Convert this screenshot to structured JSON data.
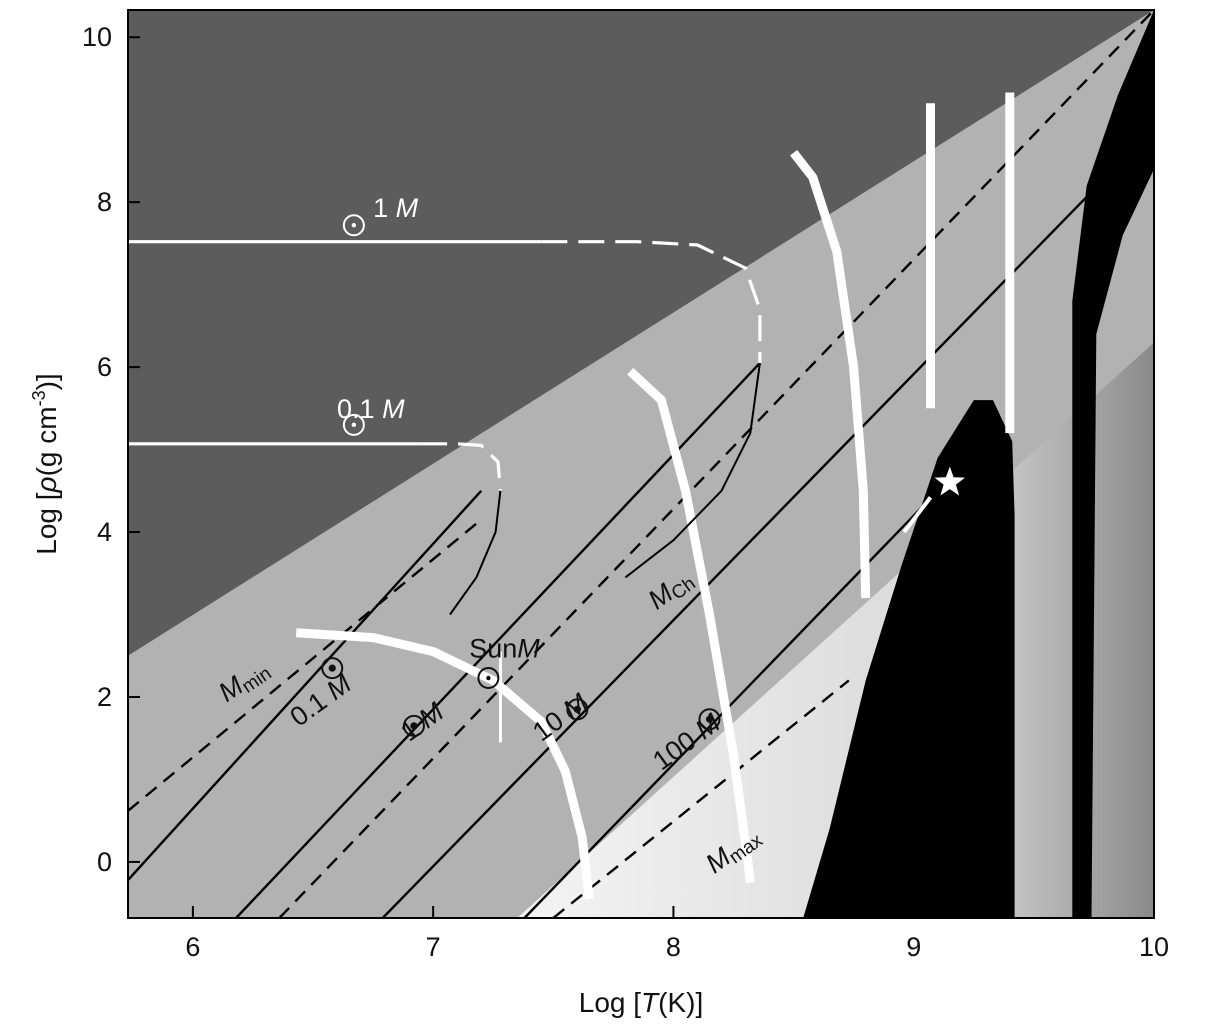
{
  "chart_data": {
    "type": "line",
    "xlabel_parts": [
      "Log [",
      "T",
      "(K)]"
    ],
    "ylabel_parts": [
      "Log [",
      "ρ",
      "(g cm",
      "-3",
      ")]"
    ],
    "xlim": [
      5.73,
      10
    ],
    "ylim": [
      -0.68,
      10.33
    ],
    "xticks": [
      6,
      7,
      8,
      9,
      10
    ],
    "yticks": [
      0,
      2,
      4,
      6,
      8,
      10
    ],
    "regions": [
      {
        "fill": "#5c5c5c",
        "points": [
          [
            5.73,
            10.33
          ],
          [
            10,
            10.33
          ],
          [
            5.73,
            2.5
          ]
        ]
      },
      {
        "fill": "#b2b2b2",
        "points": [
          [
            5.73,
            2.5
          ],
          [
            10,
            10.33
          ],
          [
            10,
            -0.68
          ],
          [
            5.73,
            -0.68
          ]
        ]
      },
      {
        "fill": "#ebebeb",
        "points": [
          [
            7.35,
            -0.68
          ],
          [
            10,
            6.3
          ],
          [
            10,
            -0.68
          ]
        ]
      },
      {
        "fill": "#000000",
        "points": [
          [
            8.54,
            -0.68
          ],
          [
            8.65,
            0.4
          ],
          [
            8.8,
            2.2
          ],
          [
            8.95,
            3.6
          ],
          [
            9.1,
            4.9
          ],
          [
            9.25,
            5.6
          ],
          [
            9.33,
            5.6
          ],
          [
            9.41,
            5.1
          ],
          [
            9.42,
            4.2
          ],
          [
            9.42,
            -0.68
          ]
        ]
      },
      {
        "fill": "#000000",
        "points": [
          [
            9.66,
            -0.68
          ],
          [
            9.66,
            6.8
          ],
          [
            9.72,
            8.2
          ],
          [
            9.85,
            9.3
          ],
          [
            10,
            10.33
          ],
          [
            10,
            8.4
          ],
          [
            9.87,
            7.6
          ],
          [
            9.76,
            6.4
          ],
          [
            9.74,
            -0.68
          ]
        ]
      }
    ],
    "mass_lines": [
      {
        "style": "dashed",
        "from": [
          5.73,
          0.62
        ],
        "to": [
          7.2,
          4.15
        ]
      },
      {
        "style": "solid",
        "from": [
          5.73,
          -0.22
        ],
        "to": [
          7.2,
          4.5
        ]
      },
      {
        "style": "solid",
        "from": [
          6.18,
          -0.68
        ],
        "to": [
          8.36,
          6.05
        ]
      },
      {
        "style": "dashed",
        "from": [
          6.36,
          -0.68
        ],
        "to": [
          10,
          10.33
        ]
      },
      {
        "style": "solid",
        "from": [
          6.79,
          -0.68
        ],
        "to": [
          10,
          8.9
        ]
      },
      {
        "style": "solid",
        "from": [
          7.38,
          -0.68
        ],
        "to": [
          9.1,
          4.5
        ]
      },
      {
        "style": "dashed",
        "from": [
          7.5,
          -0.68
        ],
        "to": [
          8.73,
          2.2
        ]
      }
    ],
    "tracks": [
      {
        "name": "1 M⊙",
        "solid": [
          [
            5.73,
            7.52
          ],
          [
            7.45,
            7.52
          ]
        ],
        "dashed": [
          [
            7.45,
            7.52
          ],
          [
            7.85,
            7.52
          ],
          [
            8.1,
            7.48
          ],
          [
            8.3,
            7.2
          ],
          [
            8.36,
            6.7
          ],
          [
            8.36,
            6.05
          ]
        ],
        "descent": [
          [
            8.36,
            6.05
          ],
          [
            8.32,
            5.2
          ],
          [
            8.2,
            4.5
          ],
          [
            8.0,
            3.9
          ],
          [
            7.8,
            3.45
          ]
        ]
      },
      {
        "name": "0.1 M⊙",
        "solid": [
          [
            5.73,
            5.07
          ],
          [
            6.95,
            5.07
          ]
        ],
        "dashed": [
          [
            6.95,
            5.07
          ],
          [
            7.1,
            5.07
          ],
          [
            7.2,
            5.05
          ],
          [
            7.27,
            4.85
          ],
          [
            7.28,
            4.5
          ]
        ],
        "descent": [
          [
            7.28,
            4.5
          ],
          [
            7.26,
            4.0
          ],
          [
            7.18,
            3.45
          ],
          [
            7.07,
            3.0
          ]
        ]
      }
    ],
    "white_curves": [
      [
        [
          6.43,
          2.78
        ],
        [
          6.75,
          2.72
        ],
        [
          7.0,
          2.55
        ],
        [
          7.25,
          2.2
        ],
        [
          7.45,
          1.7
        ],
        [
          7.55,
          1.1
        ],
        [
          7.62,
          0.3
        ],
        [
          7.65,
          -0.45
        ]
      ],
      [
        [
          7.82,
          5.95
        ],
        [
          7.95,
          5.6
        ],
        [
          8.05,
          4.5
        ],
        [
          8.15,
          3.0
        ],
        [
          8.25,
          1.3
        ],
        [
          8.31,
          0.0
        ],
        [
          8.32,
          -0.25
        ]
      ],
      [
        [
          8.5,
          8.6
        ],
        [
          8.58,
          8.3
        ],
        [
          8.68,
          7.4
        ],
        [
          8.75,
          6.0
        ],
        [
          8.79,
          4.5
        ],
        [
          8.8,
          3.2
        ]
      ],
      [
        [
          9.07,
          9.2
        ],
        [
          9.07,
          5.5
        ]
      ],
      [
        [
          9.4,
          9.33
        ],
        [
          9.4,
          5.2
        ]
      ]
    ],
    "white_segments": [
      [
        [
          8.96,
          4.0
        ],
        [
          9.07,
          4.42
        ]
      ]
    ],
    "star": [
      9.15,
      4.6
    ],
    "labels": [
      {
        "text": "1 M",
        "x": 6.75,
        "y": 7.82,
        "color": "#ffffff"
      },
      {
        "text": "0.1 M",
        "x": 6.6,
        "y": 5.38,
        "color": "#ffffff"
      },
      {
        "text": "Sun",
        "x": 7.15,
        "y": 2.48,
        "color": "#111111"
      },
      {
        "text": "M",
        "x": 6.14,
        "y": 1.93,
        "color": "#111111",
        "sub": "min",
        "rotate": -34
      },
      {
        "text": "0.1 M",
        "x": 6.44,
        "y": 1.63,
        "color": "#111111",
        "rotate": -36
      },
      {
        "text": "1 M",
        "x": 6.9,
        "y": 1.45,
        "color": "#111111",
        "rotate": -36
      },
      {
        "text": "10 M",
        "x": 7.45,
        "y": 1.45,
        "color": "#111111",
        "rotate": -36
      },
      {
        "text": "M",
        "x": 7.93,
        "y": 3.05,
        "color": "#111111",
        "sub": "Ch",
        "rotate": -36
      },
      {
        "text": "100 M",
        "x": 7.95,
        "y": 1.1,
        "color": "#111111",
        "rotate": -36
      },
      {
        "text": "M",
        "x": 8.17,
        "y": -0.15,
        "color": "#111111",
        "sub": "max",
        "rotate": -36
      }
    ],
    "sun_symbols": [
      {
        "x": 6.67,
        "y": 7.72,
        "color": "#ffffff",
        "filled": false
      },
      {
        "x": 6.67,
        "y": 5.3,
        "color": "#ffffff",
        "filled": false
      },
      {
        "x": 7.23,
        "y": 2.23,
        "color": "#111111",
        "filled": false
      },
      {
        "x": 6.58,
        "y": 2.35,
        "color": "#111111",
        "filled": true
      },
      {
        "x": 6.92,
        "y": 1.65,
        "color": "#111111",
        "filled": true
      },
      {
        "x": 7.6,
        "y": 1.85,
        "color": "#111111",
        "filled": true
      },
      {
        "x": 8.15,
        "y": 1.73,
        "color": "#111111",
        "filled": true
      }
    ]
  }
}
